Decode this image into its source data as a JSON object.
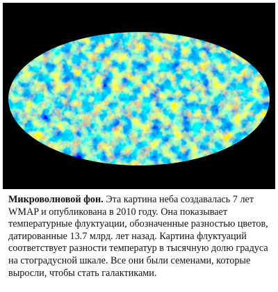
{
  "figure": {
    "caption": {
      "title": "Микроволновой фон.",
      "text": "Эта картина неба создавалась 7 лет WMAP и опубликована в 2010 году. Она показывает температурные флуктуации, обозначенные разностью цветов, датированные 13.7 млрд. лет назад. Картина флуктуаций соответствует разности температур в тысячную долю градуса на стоградусной шкале. Все они были семенами, которые выросли, чтобы стать галактиками."
    }
  }
}
